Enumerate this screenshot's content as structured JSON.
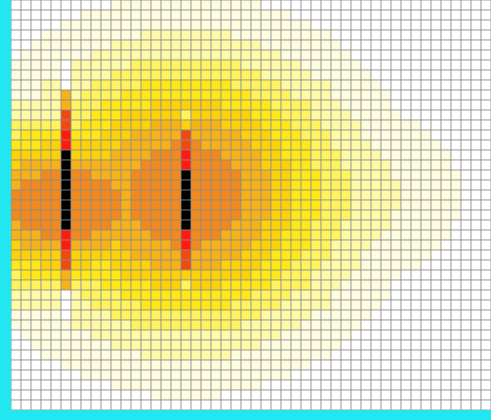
{
  "colors": {
    "frame": "#22e6f0",
    "gridline": "#8a8a8a",
    "background": "#ffffff",
    "palette": [
      "#ffffff",
      "#fffde0",
      "#fffaa8",
      "#fff460",
      "#ffe81a",
      "#fbd20c",
      "#f7b21a",
      "#f08a1e",
      "#f04a12",
      "#ff1a10",
      "#000000"
    ]
  },
  "field": {
    "rows": 41,
    "cols": 48,
    "sources": [
      {
        "row": 20,
        "col": 4,
        "strength": 1.0
      },
      {
        "row": 19,
        "col": 15,
        "strength": 1.0
      }
    ],
    "barriers": [
      {
        "col": 5,
        "row_start": 6,
        "row_end": 31,
        "state": "open-slit"
      },
      {
        "col": 17,
        "row_start": 11,
        "row_end": 28,
        "state": "emitter"
      }
    ]
  }
}
